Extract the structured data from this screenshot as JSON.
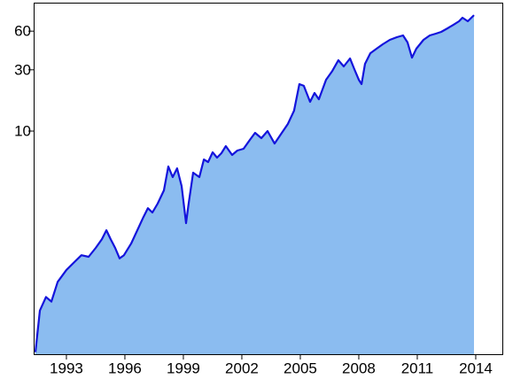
{
  "chart_data": {
    "type": "area",
    "x": [
      1991.41,
      1991.64,
      1991.95,
      1992.23,
      1992.55,
      1993.0,
      1993.45,
      1993.77,
      1994.14,
      1994.5,
      1994.82,
      1995.05,
      1995.27,
      1995.5,
      1995.73,
      1995.95,
      1996.32,
      1996.64,
      1996.95,
      1997.18,
      1997.41,
      1997.68,
      1998.0,
      1998.23,
      1998.45,
      1998.68,
      1998.91,
      1999.14,
      1999.27,
      1999.5,
      1999.82,
      2000.05,
      2000.27,
      2000.5,
      2000.73,
      2000.95,
      2001.18,
      2001.5,
      2001.77,
      2002.09,
      2002.41,
      2002.68,
      2003.0,
      2003.32,
      2003.68,
      2004.05,
      2004.36,
      2004.68,
      2004.95,
      2005.18,
      2005.5,
      2005.73,
      2005.95,
      2006.32,
      2006.64,
      2006.95,
      2007.23,
      2007.55,
      2007.77,
      2008.0,
      2008.14,
      2008.32,
      2008.59,
      2008.91,
      2009.23,
      2009.59,
      2009.95,
      2010.27,
      2010.5,
      2010.73,
      2010.95,
      2011.32,
      2011.64,
      2011.95,
      2012.23,
      2012.55,
      2012.86,
      2013.14,
      2013.32,
      2013.59,
      2013.91
    ],
    "series": [
      {
        "color": "#1414dc",
        "area_color": "#8bbcf0",
        "values": [
          0.19,
          0.4,
          0.51,
          0.47,
          0.67,
          0.83,
          0.97,
          1.08,
          1.05,
          1.23,
          1.44,
          1.69,
          1.44,
          1.23,
          1.02,
          1.08,
          1.33,
          1.69,
          2.14,
          2.51,
          2.32,
          2.72,
          3.45,
          5.3,
          4.38,
          5.13,
          3.73,
          1.92,
          2.72,
          4.74,
          4.38,
          6.01,
          5.74,
          6.83,
          6.21,
          6.73,
          7.64,
          6.52,
          7.05,
          7.28,
          8.53,
          9.69,
          8.81,
          10.0,
          8.0,
          9.69,
          11.35,
          14.41,
          23.2,
          22.5,
          16.9,
          19.8,
          17.7,
          25.1,
          29.4,
          35.6,
          31.9,
          36.8,
          30.4,
          25.1,
          23.2,
          33.4,
          40.4,
          43.8,
          47.4,
          51.3,
          53.8,
          55.6,
          49.0,
          37.3,
          43.8,
          51.3,
          55.6,
          57.4,
          59.2,
          63.1,
          67.3,
          71.6,
          76.4,
          71.6,
          80.0
        ]
      }
    ],
    "xlim": [
      1991.32,
      2015.41
    ],
    "xticks": [
      1993,
      1996,
      1999,
      2002,
      2005,
      2008,
      2011,
      2014
    ],
    "ylim": [
      0.183,
      100
    ],
    "yticks": [
      10,
      30,
      60
    ],
    "log_y": true,
    "grid": false
  }
}
